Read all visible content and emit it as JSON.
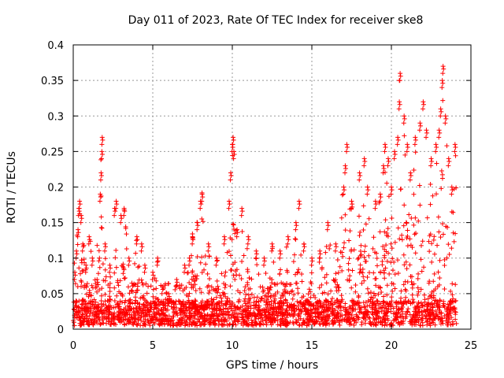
{
  "chart_data": {
    "type": "scatter",
    "title": "Day 011 of 2023, Rate Of TEC Index for receiver ske8",
    "xlabel": "GPS time / hours",
    "ylabel": "ROTI / TECUs",
    "xlim": [
      0,
      25
    ],
    "ylim": [
      0,
      0.4
    ],
    "xticks": [
      0,
      5,
      10,
      15,
      20,
      25
    ],
    "yticks": [
      0,
      0.05,
      0.1,
      0.15,
      0.2,
      0.25,
      0.3,
      0.35,
      0.4
    ],
    "ytick_labels": [
      "0",
      "0.05",
      "0.1",
      "0.15",
      "0.2",
      "0.25",
      "0.3",
      "0.35",
      "0.4"
    ],
    "grid": true,
    "marker": "+",
    "color": "#ff0000",
    "series": [
      {
        "values": [
          [
            0.1,
            0.08
          ],
          [
            0.2,
            0.11
          ],
          [
            0.3,
            0.14
          ],
          [
            0.35,
            0.17
          ],
          [
            0.4,
            0.18
          ],
          [
            0.5,
            0.16
          ],
          [
            0.6,
            0.12
          ],
          [
            0.8,
            0.09
          ],
          [
            1.0,
            0.13
          ],
          [
            1.2,
            0.1
          ],
          [
            1.5,
            0.07
          ],
          [
            1.7,
            0.19
          ],
          [
            1.75,
            0.22
          ],
          [
            1.8,
            0.25
          ],
          [
            1.82,
            0.27
          ],
          [
            2.0,
            0.12
          ],
          [
            2.3,
            0.09
          ],
          [
            2.6,
            0.17
          ],
          [
            2.7,
            0.18
          ],
          [
            3.0,
            0.16
          ],
          [
            3.2,
            0.17
          ],
          [
            3.5,
            0.1
          ],
          [
            4.0,
            0.13
          ],
          [
            4.3,
            0.12
          ],
          [
            4.5,
            0.09
          ],
          [
            5.0,
            0.08
          ],
          [
            5.3,
            0.1
          ],
          [
            5.6,
            0.06
          ],
          [
            6.0,
            0.05
          ],
          [
            6.5,
            0.07
          ],
          [
            7.0,
            0.09
          ],
          [
            7.3,
            0.1
          ],
          [
            7.5,
            0.13
          ],
          [
            7.8,
            0.15
          ],
          [
            8.0,
            0.18
          ],
          [
            8.1,
            0.19
          ],
          [
            8.5,
            0.12
          ],
          [
            9.0,
            0.1
          ],
          [
            9.5,
            0.13
          ],
          [
            9.8,
            0.18
          ],
          [
            9.9,
            0.22
          ],
          [
            10.0,
            0.26
          ],
          [
            10.05,
            0.27
          ],
          [
            10.1,
            0.25
          ],
          [
            10.3,
            0.14
          ],
          [
            10.6,
            0.17
          ],
          [
            11.0,
            0.13
          ],
          [
            11.5,
            0.11
          ],
          [
            12.0,
            0.1
          ],
          [
            12.5,
            0.12
          ],
          [
            13.0,
            0.11
          ],
          [
            13.5,
            0.13
          ],
          [
            14.0,
            0.15
          ],
          [
            14.2,
            0.18
          ],
          [
            14.5,
            0.12
          ],
          [
            15.0,
            0.1
          ],
          [
            15.5,
            0.11
          ],
          [
            16.0,
            0.15
          ],
          [
            16.5,
            0.12
          ],
          [
            17.0,
            0.2
          ],
          [
            17.1,
            0.23
          ],
          [
            17.2,
            0.26
          ],
          [
            17.5,
            0.18
          ],
          [
            18.0,
            0.22
          ],
          [
            18.3,
            0.24
          ],
          [
            18.5,
            0.2
          ],
          [
            19.0,
            0.18
          ],
          [
            19.3,
            0.19
          ],
          [
            19.5,
            0.23
          ],
          [
            19.6,
            0.26
          ],
          [
            19.8,
            0.24
          ],
          [
            20.0,
            0.2
          ],
          [
            20.2,
            0.25
          ],
          [
            20.4,
            0.27
          ],
          [
            20.5,
            0.32
          ],
          [
            20.55,
            0.36
          ],
          [
            20.8,
            0.3
          ],
          [
            21.0,
            0.26
          ],
          [
            21.2,
            0.22
          ],
          [
            21.5,
            0.27
          ],
          [
            21.8,
            0.29
          ],
          [
            22.0,
            0.32
          ],
          [
            22.2,
            0.28
          ],
          [
            22.5,
            0.24
          ],
          [
            22.8,
            0.26
          ],
          [
            23.0,
            0.28
          ],
          [
            23.1,
            0.31
          ],
          [
            23.2,
            0.35
          ],
          [
            23.25,
            0.37
          ],
          [
            23.4,
            0.3
          ],
          [
            23.6,
            0.24
          ],
          [
            23.8,
            0.2
          ],
          [
            24.0,
            0.26
          ]
        ]
      }
    ],
    "noise": {
      "y_floor": 0.005,
      "y_mid": 0.06
    }
  }
}
